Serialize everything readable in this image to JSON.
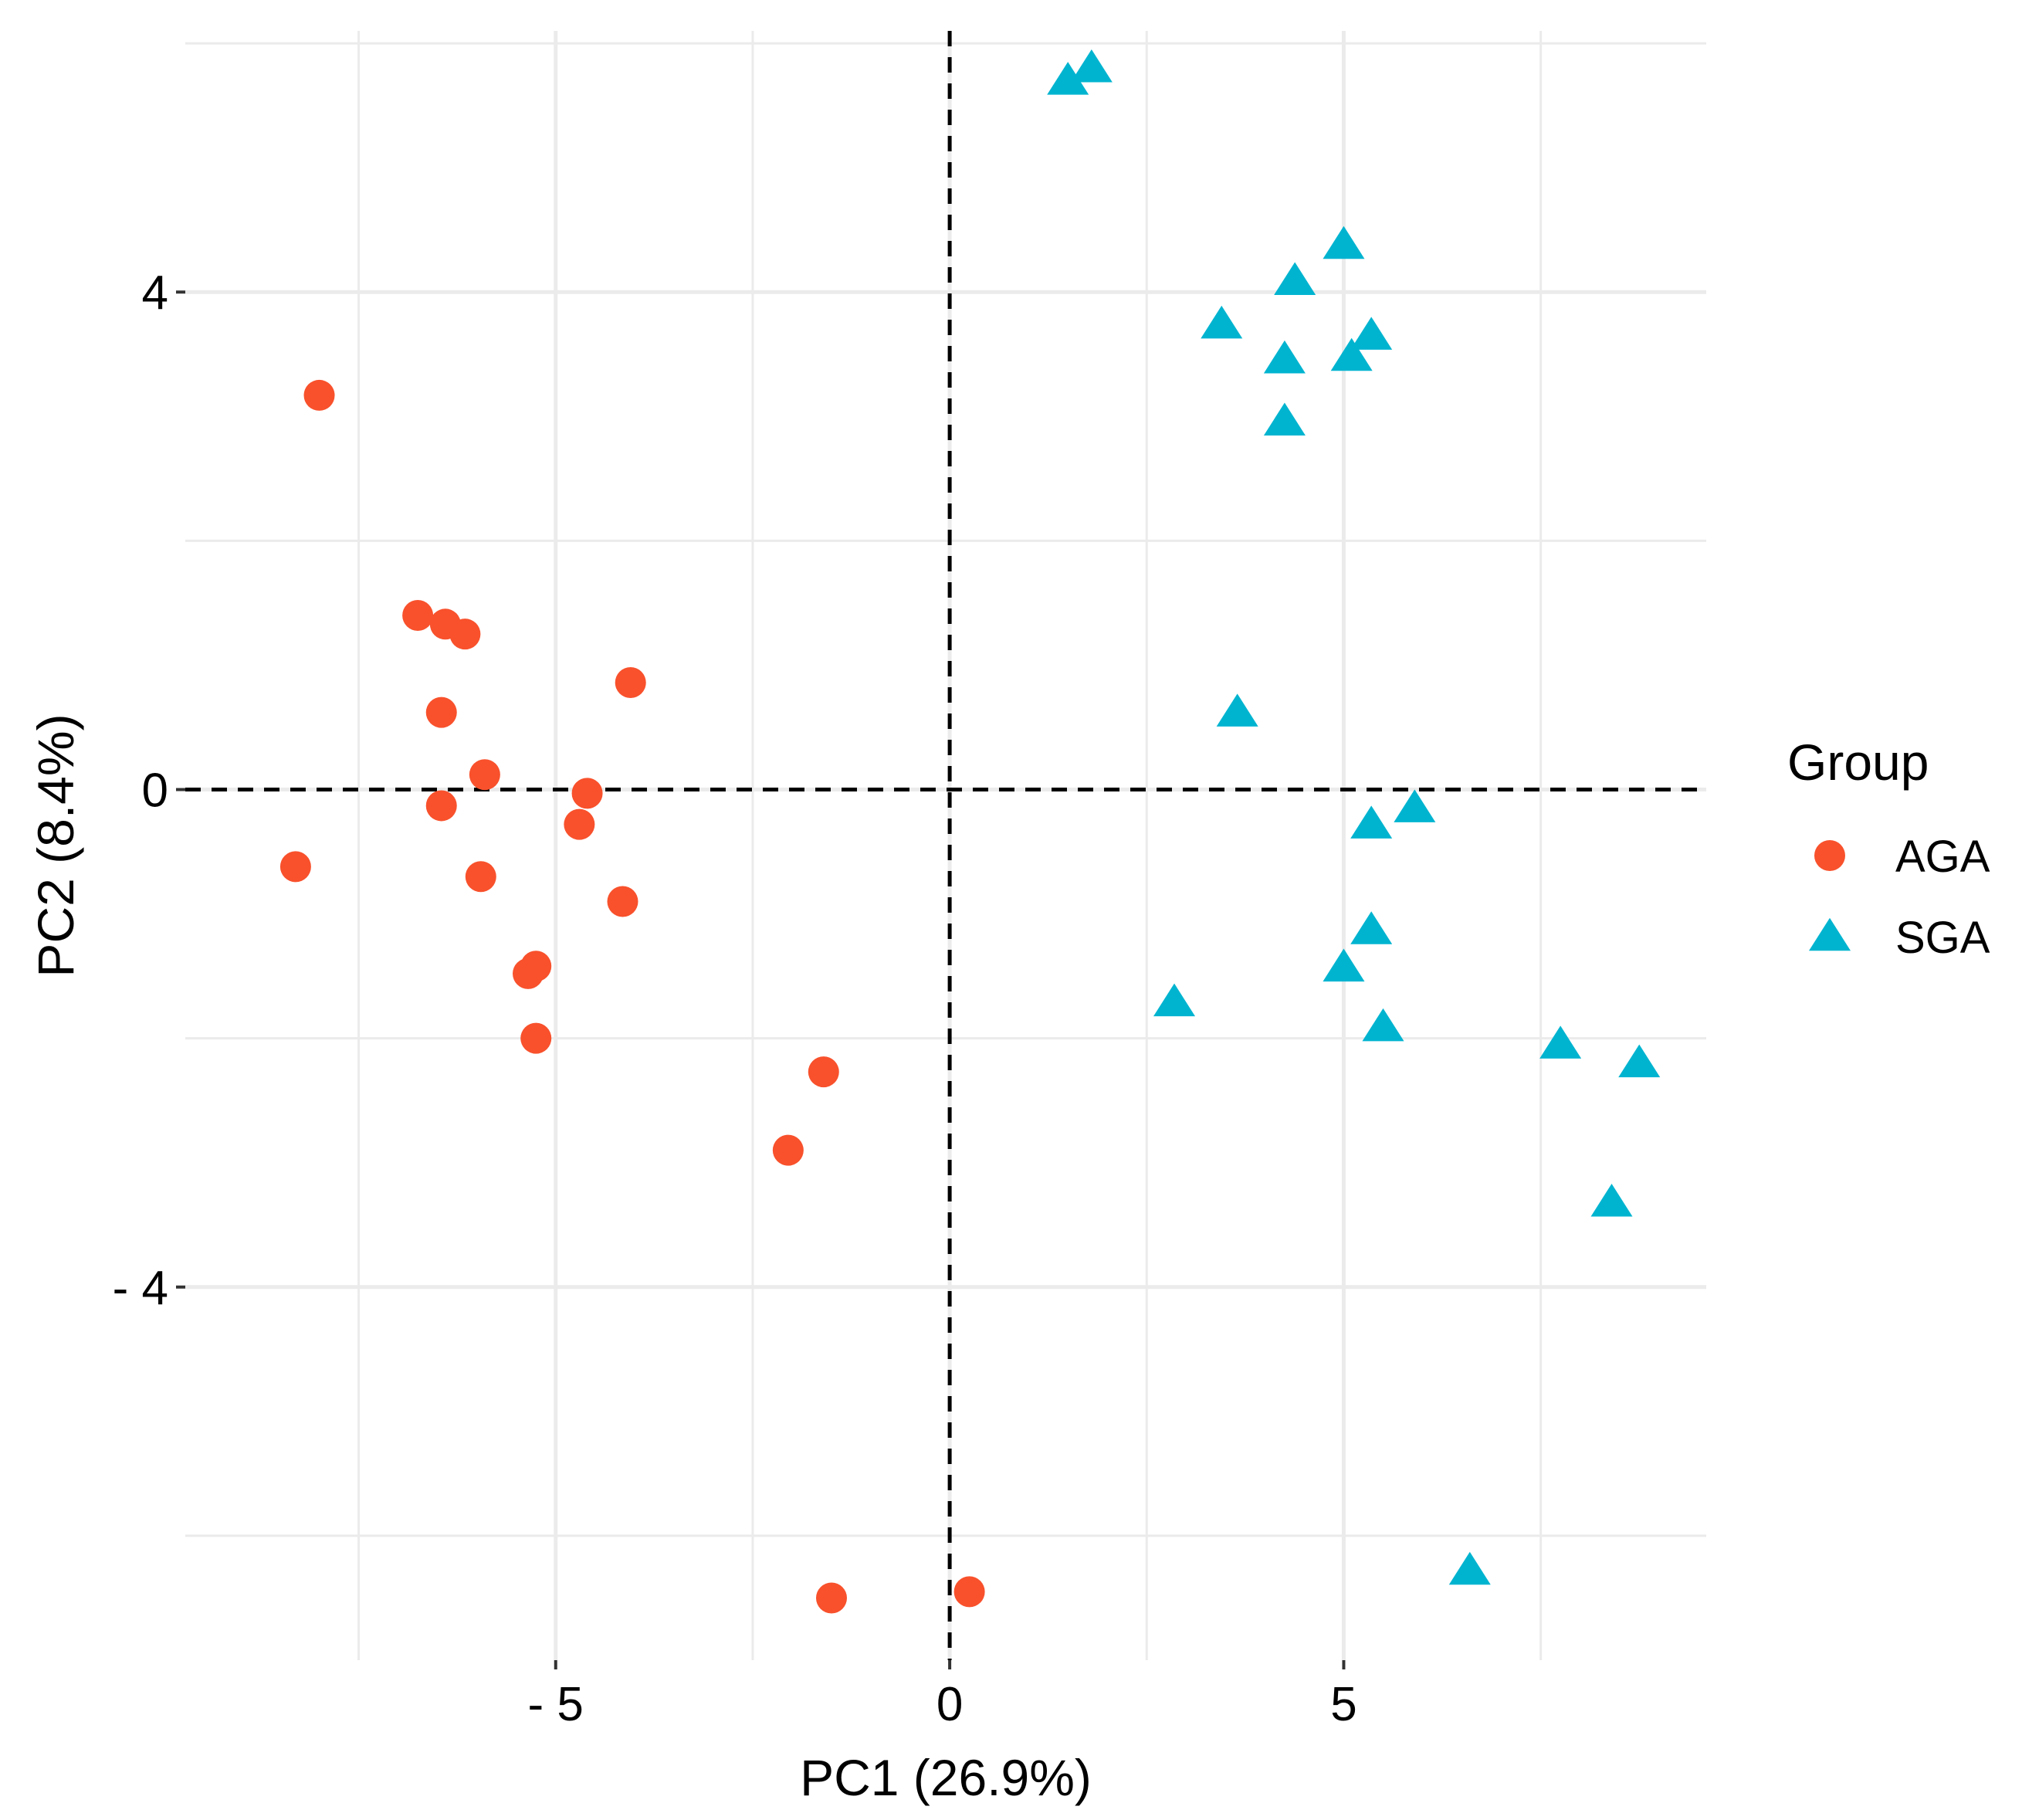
{
  "chart_data": {
    "type": "scatter",
    "title": "",
    "xlabel": "PC1 (26.9%)",
    "ylabel": "PC2 (8.4%)",
    "xlim": [
      -9.7,
      9.6
    ],
    "ylim": [
      -7.0,
      6.1
    ],
    "x_ticks": [
      {
        "value": -5,
        "label": "- 5"
      },
      {
        "value": 0,
        "label": "0"
      },
      {
        "value": 5,
        "label": "5"
      }
    ],
    "y_ticks": [
      {
        "value": 4,
        "label": "4"
      },
      {
        "value": 0,
        "label": "0"
      },
      {
        "value": -4,
        "label": "- 4"
      }
    ],
    "x_minor_gridlines": [
      -7.5,
      -2.5,
      2.5,
      7.5
    ],
    "y_minor_gridlines": [
      6,
      2,
      -2,
      -6
    ],
    "reference_lines": {
      "x": 0,
      "y": 0,
      "style": "dashed"
    },
    "grid": true,
    "legend": {
      "title": "Group",
      "position": "right"
    },
    "series": [
      {
        "name": "AGA",
        "marker": "circle",
        "color": "#F8512C",
        "points": [
          [
            -8.0,
            3.17
          ],
          [
            -8.3,
            -0.62
          ],
          [
            -6.75,
            1.4
          ],
          [
            -6.4,
            1.33
          ],
          [
            -6.15,
            1.25
          ],
          [
            -6.45,
            0.62
          ],
          [
            -5.9,
            0.12
          ],
          [
            -6.45,
            -0.13
          ],
          [
            -5.95,
            -0.7
          ],
          [
            -4.6,
            -0.03
          ],
          [
            -4.7,
            -0.28
          ],
          [
            -4.05,
            0.86
          ],
          [
            -4.15,
            -0.9
          ],
          [
            -5.25,
            -1.42
          ],
          [
            -5.35,
            -1.48
          ],
          [
            -5.25,
            -2.0
          ],
          [
            -1.6,
            -2.27
          ],
          [
            -2.05,
            -2.9
          ],
          [
            -1.5,
            -6.5
          ],
          [
            0.25,
            -6.45
          ]
        ]
      },
      {
        "name": "SGA",
        "marker": "triangle",
        "color": "#00B4D0",
        "points": [
          [
            1.5,
            5.7
          ],
          [
            1.8,
            5.8
          ],
          [
            5.0,
            4.38
          ],
          [
            4.38,
            4.09
          ],
          [
            3.45,
            3.74
          ],
          [
            5.35,
            3.65
          ],
          [
            4.25,
            3.46
          ],
          [
            5.1,
            3.48
          ],
          [
            4.25,
            2.96
          ],
          [
            3.65,
            0.62
          ],
          [
            5.35,
            -0.28
          ],
          [
            5.9,
            -0.15
          ],
          [
            5.35,
            -1.13
          ],
          [
            5.0,
            -1.43
          ],
          [
            2.85,
            -1.71
          ],
          [
            5.5,
            -1.91
          ],
          [
            7.75,
            -2.05
          ],
          [
            8.75,
            -2.2
          ],
          [
            8.4,
            -3.32
          ],
          [
            6.6,
            -6.28
          ]
        ]
      }
    ]
  }
}
